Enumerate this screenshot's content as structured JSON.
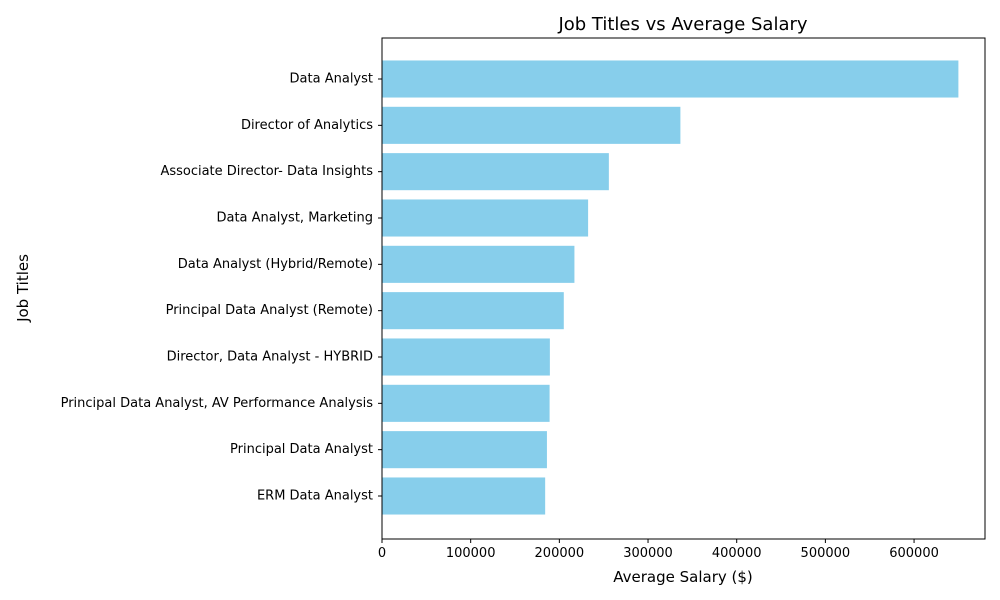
{
  "chart_data": {
    "type": "bar",
    "orientation": "horizontal",
    "title": "Job Titles vs Average Salary",
    "xlabel": "Average Salary ($)",
    "ylabel": "Job Titles",
    "xlim": [
      0,
      680000
    ],
    "xticks": [
      0,
      100000,
      200000,
      300000,
      400000,
      500000,
      600000
    ],
    "grid": false,
    "bar_color": "#87ceeb",
    "categories": [
      "Data Analyst",
      "Director of Analytics",
      "Associate Director- Data Insights",
      "Data Analyst, Marketing",
      "Data Analyst (Hybrid/Remote)",
      "Principal Data Analyst (Remote)",
      "Director, Data Analyst - HYBRID",
      "Principal Data Analyst, AV Performance Analysis",
      "Principal Data Analyst",
      "ERM Data Analyst"
    ],
    "values": [
      650000,
      336500,
      255830,
      232423,
      217000,
      205000,
      189309,
      189000,
      186000,
      184000
    ]
  }
}
